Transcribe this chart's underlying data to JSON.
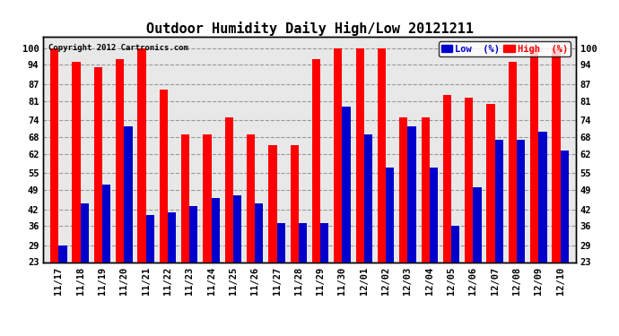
{
  "title": "Outdoor Humidity Daily High/Low 20121211",
  "copyright": "Copyright 2012 Cartronics.com",
  "categories": [
    "11/17",
    "11/18",
    "11/19",
    "11/20",
    "11/21",
    "11/22",
    "11/23",
    "11/24",
    "11/25",
    "11/26",
    "11/27",
    "11/28",
    "11/29",
    "11/30",
    "12/01",
    "12/02",
    "12/03",
    "12/04",
    "12/05",
    "12/06",
    "12/07",
    "12/08",
    "12/09",
    "12/10"
  ],
  "high_values": [
    100,
    95,
    93,
    96,
    100,
    85,
    69,
    69,
    75,
    69,
    65,
    65,
    96,
    100,
    100,
    100,
    75,
    75,
    83,
    82,
    80,
    95,
    100,
    100
  ],
  "low_values": [
    29,
    44,
    51,
    72,
    40,
    41,
    43,
    46,
    47,
    44,
    37,
    37,
    37,
    79,
    69,
    57,
    72,
    57,
    36,
    50,
    67,
    67,
    70,
    63
  ],
  "high_color": "#ff0000",
  "low_color": "#0000cc",
  "bg_color": "#ffffff",
  "plot_bg_color": "#e8e8e8",
  "grid_color": "#999999",
  "ylim_min": 23,
  "ylim_max": 104,
  "yticks": [
    23,
    29,
    36,
    42,
    49,
    55,
    62,
    68,
    74,
    81,
    87,
    94,
    100
  ],
  "legend_low_label": "Low  (%)",
  "legend_high_label": "High  (%)",
  "title_fontsize": 11,
  "tick_fontsize": 7.5,
  "bar_width": 0.38
}
